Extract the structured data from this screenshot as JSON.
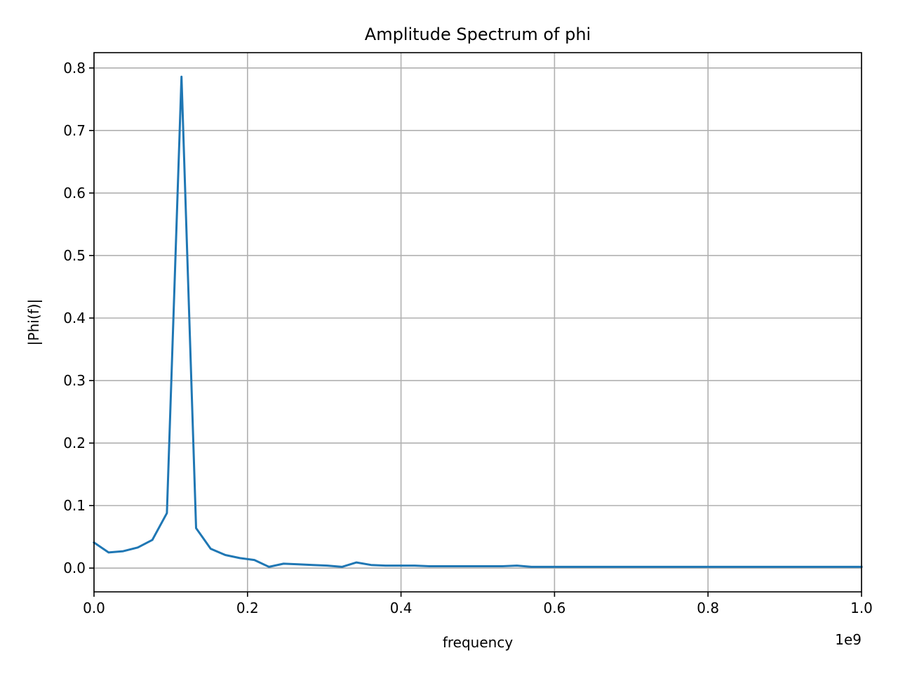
{
  "chart_data": {
    "type": "line",
    "title": "Amplitude Spectrum of phi",
    "xlabel": "frequency",
    "ylabel": "|Phi(f)|",
    "x_offset_label": "1e9",
    "xlim": [
      0.0,
      1.0
    ],
    "ylim": [
      -0.038,
      0.8245
    ],
    "grid": true,
    "x_ticks": [
      "0.0",
      "0.2",
      "0.4",
      "0.6",
      "0.8",
      "1.0"
    ],
    "y_ticks": [
      "0.0",
      "0.1",
      "0.2",
      "0.3",
      "0.4",
      "0.5",
      "0.6",
      "0.7",
      "0.8"
    ],
    "line_color": "#1f77b4",
    "series": [
      {
        "x": [
          0.0,
          0.019,
          0.038,
          0.057,
          0.076,
          0.095,
          0.114,
          0.133,
          0.152,
          0.171,
          0.19,
          0.209,
          0.228,
          0.247,
          0.266,
          0.285,
          0.304,
          0.323,
          0.342,
          0.361,
          0.38,
          0.399,
          0.418,
          0.437,
          0.456,
          0.475,
          0.494,
          0.513,
          0.532,
          0.551,
          0.57,
          0.589,
          0.608,
          0.627,
          0.646,
          0.665,
          0.684,
          0.703,
          0.722,
          0.741,
          0.76,
          0.779,
          0.798,
          0.817,
          0.836,
          0.855,
          0.874,
          0.893,
          0.912,
          0.931,
          0.95,
          0.969,
          0.988,
          1.0
        ],
        "y": [
          0.041,
          0.025,
          0.027,
          0.033,
          0.045,
          0.088,
          0.786,
          0.064,
          0.031,
          0.021,
          0.016,
          0.013,
          0.002,
          0.007,
          0.006,
          0.005,
          0.004,
          0.002,
          0.009,
          0.005,
          0.004,
          0.004,
          0.004,
          0.003,
          0.003,
          0.003,
          0.003,
          0.003,
          0.003,
          0.004,
          0.002,
          0.002,
          0.002,
          0.002,
          0.002,
          0.002,
          0.002,
          0.002,
          0.002,
          0.002,
          0.002,
          0.002,
          0.002,
          0.002,
          0.002,
          0.002,
          0.002,
          0.002,
          0.002,
          0.002,
          0.002,
          0.002,
          0.002,
          0.002
        ]
      }
    ]
  }
}
